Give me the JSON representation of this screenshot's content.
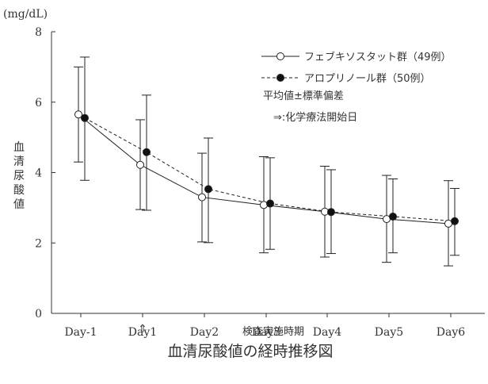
{
  "chart_data": {
    "type": "line",
    "title": "血清尿酸値の経時推移図",
    "ylabel": "血清尿酸値",
    "yunit": "(mg/dL)",
    "xlabel": "検査実施時期",
    "ylim": [
      0,
      8
    ],
    "yticks": [
      0,
      2,
      4,
      6,
      8
    ],
    "categories": [
      "Day-1",
      "Day1",
      "Day2",
      "Day3",
      "Day4",
      "Day5",
      "Day6"
    ],
    "series": [
      {
        "name": "フェブキソスタット群（49例）",
        "marker": "open-circle",
        "line": "solid",
        "values": [
          5.65,
          4.22,
          3.3,
          3.08,
          2.89,
          2.68,
          2.55
        ],
        "err_upper": [
          7.0,
          5.5,
          4.55,
          4.45,
          4.18,
          3.92,
          3.77
        ],
        "err_lower": [
          4.3,
          2.95,
          2.03,
          1.72,
          1.6,
          1.45,
          1.35
        ]
      },
      {
        "name": "アロプリノール群（50例）",
        "marker": "filled-circle",
        "line": "dashed",
        "values": [
          5.55,
          4.58,
          3.53,
          3.12,
          2.88,
          2.75,
          2.62
        ],
        "err_upper": [
          7.28,
          6.2,
          4.98,
          4.42,
          4.08,
          3.82,
          3.55
        ],
        "err_lower": [
          3.78,
          2.93,
          2.01,
          1.82,
          1.7,
          1.72,
          1.65
        ]
      }
    ],
    "legend_position": "top-right",
    "annotations": {
      "stat_note": "平均値±標準偏差",
      "arrow_note": "⇒:化学療法開始日",
      "arrow_marker": "⇑",
      "arrow_category": "Day1"
    },
    "colors": {
      "line": "#222222",
      "axis": "#333333",
      "open_marker_fill": "#ffffff",
      "filled_marker_fill": "#111111"
    }
  }
}
